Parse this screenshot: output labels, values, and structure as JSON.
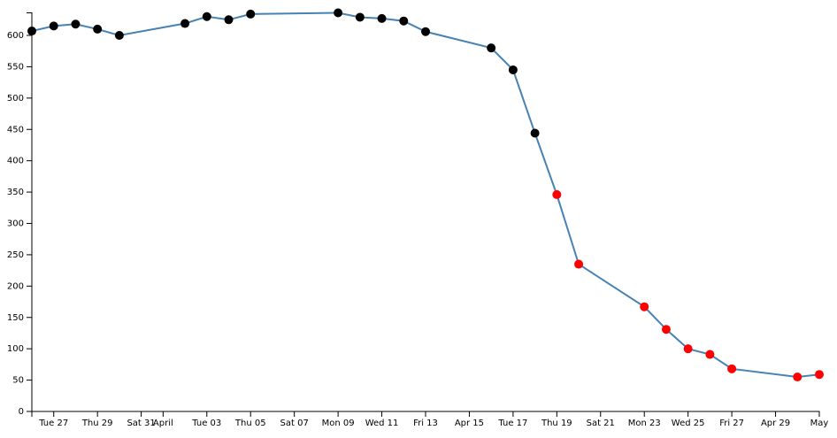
{
  "chart_data": {
    "type": "line",
    "x": [
      "Mar 26",
      "Mar 27",
      "Mar 28",
      "Mar 29",
      "Mar 30",
      "Apr 02",
      "Apr 03",
      "Apr 04",
      "Apr 05",
      "Apr 09",
      "Apr 10",
      "Apr 11",
      "Apr 12",
      "Apr 13",
      "Apr 16",
      "Apr 17",
      "Apr 18",
      "Apr 19",
      "Apr 20",
      "Apr 23",
      "Apr 24",
      "Apr 25",
      "Apr 26",
      "Apr 27",
      "Apr 30",
      "May 01"
    ],
    "series": [
      {
        "color": "#4682b4",
        "values": [
          607,
          615,
          618,
          610,
          600,
          619,
          630,
          625,
          634,
          636,
          629,
          627,
          623,
          606,
          580,
          545,
          444,
          346,
          235,
          167,
          131,
          100,
          91,
          68,
          55,
          59
        ],
        "point_colors": [
          "#000",
          "#000",
          "#000",
          "#000",
          "#000",
          "#000",
          "#000",
          "#000",
          "#000",
          "#000",
          "#000",
          "#000",
          "#000",
          "#000",
          "#000",
          "#000",
          "#000",
          "#f00",
          "#f00",
          "#f00",
          "#f00",
          "#f00",
          "#f00",
          "#f00",
          "#f00",
          "#f00"
        ]
      }
    ],
    "xlim": [
      "Mar 26",
      "May 01"
    ],
    "xticks": [
      {
        "value": "Mar 27",
        "label": "Tue 27"
      },
      {
        "value": "Mar 29",
        "label": "Thu 29"
      },
      {
        "value": "Mar 31",
        "label": "Sat 31"
      },
      {
        "value": "Apr 01",
        "label": "April"
      },
      {
        "value": "Apr 03",
        "label": "Tue 03"
      },
      {
        "value": "Apr 05",
        "label": "Thu 05"
      },
      {
        "value": "Apr 07",
        "label": "Sat 07"
      },
      {
        "value": "Apr 09",
        "label": "Mon 09"
      },
      {
        "value": "Apr 11",
        "label": "Wed 11"
      },
      {
        "value": "Apr 13",
        "label": "Fri 13"
      },
      {
        "value": "Apr 15",
        "label": "Apr 15"
      },
      {
        "value": "Apr 17",
        "label": "Tue 17"
      },
      {
        "value": "Apr 19",
        "label": "Thu 19"
      },
      {
        "value": "Apr 21",
        "label": "Sat 21"
      },
      {
        "value": "Apr 23",
        "label": "Mon 23"
      },
      {
        "value": "Apr 25",
        "label": "Wed 25"
      },
      {
        "value": "Apr 27",
        "label": "Fri 27"
      },
      {
        "value": "Apr 29",
        "label": "Apr 29"
      },
      {
        "value": "May 01",
        "label": "May"
      }
    ],
    "ylim": [
      0,
      636
    ],
    "yticks": [
      0,
      50,
      100,
      150,
      200,
      250,
      300,
      350,
      400,
      450,
      500,
      550,
      600
    ]
  }
}
